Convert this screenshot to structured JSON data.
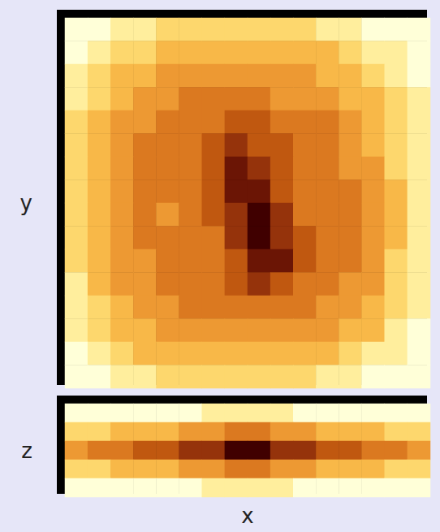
{
  "chart_data": [
    {
      "type": "heatmap",
      "ylabel": "y",
      "tick_labels": false,
      "cells": [
        [
          0,
          0,
          1,
          1,
          2,
          2,
          2,
          2,
          2,
          2,
          2,
          1,
          1,
          0,
          0,
          0
        ],
        [
          0,
          1,
          2,
          2,
          3,
          3,
          3,
          3,
          3,
          3,
          3,
          3,
          2,
          1,
          1,
          0
        ],
        [
          1,
          2,
          3,
          3,
          4,
          4,
          4,
          4,
          4,
          4,
          4,
          3,
          3,
          2,
          1,
          0
        ],
        [
          1,
          2,
          3,
          4,
          4,
          5,
          5,
          5,
          5,
          4,
          4,
          4,
          3,
          3,
          2,
          1
        ],
        [
          2,
          3,
          4,
          4,
          5,
          5,
          5,
          6,
          6,
          5,
          5,
          5,
          4,
          3,
          2,
          1
        ],
        [
          2,
          3,
          4,
          5,
          5,
          5,
          6,
          7,
          6,
          6,
          5,
          5,
          4,
          3,
          2,
          1
        ],
        [
          2,
          3,
          4,
          5,
          5,
          5,
          6,
          8,
          7,
          6,
          5,
          5,
          4,
          4,
          2,
          1
        ],
        [
          2,
          3,
          4,
          5,
          5,
          5,
          6,
          8,
          8,
          6,
          5,
          5,
          5,
          4,
          3,
          1
        ],
        [
          2,
          3,
          4,
          5,
          4,
          5,
          6,
          7,
          9,
          7,
          5,
          5,
          5,
          4,
          3,
          1
        ],
        [
          2,
          3,
          4,
          5,
          5,
          5,
          5,
          7,
          9,
          7,
          6,
          5,
          5,
          4,
          3,
          1
        ],
        [
          2,
          3,
          4,
          4,
          5,
          5,
          5,
          6,
          8,
          8,
          6,
          5,
          5,
          4,
          2,
          1
        ],
        [
          1,
          3,
          4,
          4,
          5,
          5,
          5,
          6,
          7,
          6,
          5,
          5,
          4,
          4,
          2,
          1
        ],
        [
          1,
          2,
          3,
          4,
          4,
          5,
          5,
          5,
          5,
          5,
          5,
          4,
          4,
          3,
          2,
          1
        ],
        [
          1,
          2,
          3,
          3,
          4,
          4,
          4,
          4,
          4,
          4,
          4,
          4,
          3,
          3,
          1,
          0
        ],
        [
          0,
          1,
          2,
          3,
          3,
          3,
          3,
          3,
          3,
          3,
          3,
          3,
          2,
          1,
          1,
          0
        ],
        [
          0,
          0,
          1,
          1,
          2,
          2,
          2,
          2,
          2,
          2,
          2,
          1,
          1,
          0,
          0,
          0
        ]
      ]
    },
    {
      "type": "heatmap",
      "xlabel": "x",
      "ylabel": "z",
      "tick_labels": false,
      "cells": [
        [
          0,
          0,
          0,
          0,
          0,
          0,
          1,
          1,
          1,
          1,
          0,
          0,
          0,
          0,
          0,
          0
        ],
        [
          2,
          2,
          3,
          3,
          3,
          4,
          4,
          5,
          5,
          4,
          4,
          3,
          3,
          3,
          2,
          2
        ],
        [
          4,
          5,
          5,
          6,
          6,
          7,
          7,
          9,
          9,
          7,
          7,
          6,
          6,
          5,
          5,
          4
        ],
        [
          2,
          2,
          3,
          3,
          3,
          4,
          4,
          5,
          5,
          4,
          4,
          3,
          3,
          3,
          2,
          2
        ],
        [
          0,
          0,
          0,
          0,
          0,
          0,
          1,
          1,
          1,
          1,
          0,
          0,
          0,
          0,
          0,
          0
        ]
      ]
    }
  ]
}
